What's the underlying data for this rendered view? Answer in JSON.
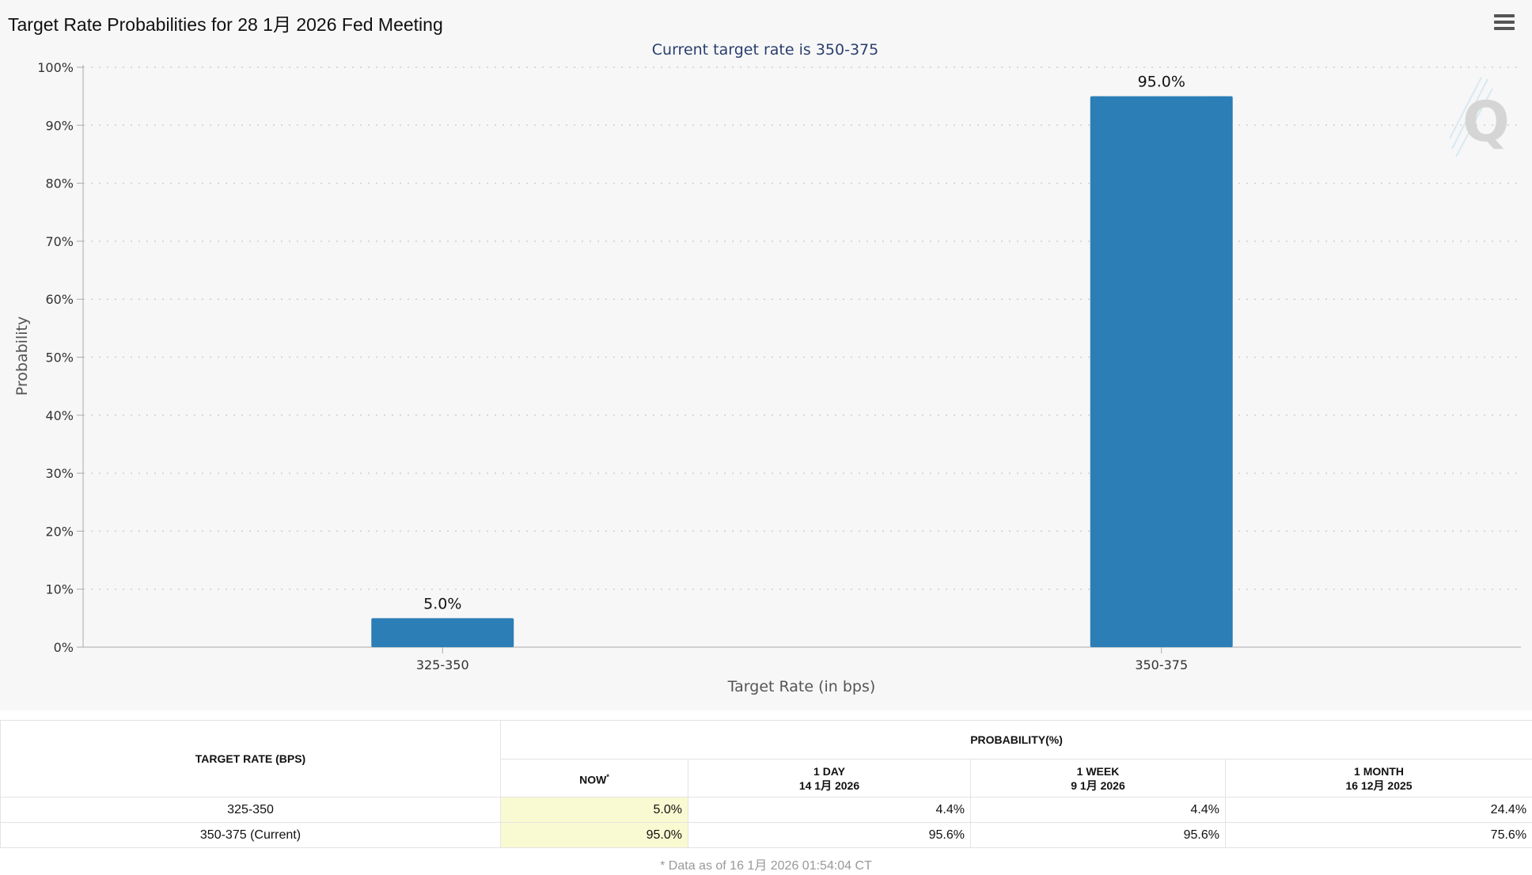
{
  "title": "Target Rate Probabilities for 28 1月 2026 Fed Meeting",
  "menu_icon": "hamburger-menu-icon",
  "watermark_icon": "cme-q-logo",
  "colors": {
    "bar": "#2b7eb6",
    "now_highlight": "#fafad2",
    "subtitle": "#2a3f6e"
  },
  "chart_data": {
    "type": "bar",
    "title": "Current target rate is 350-375",
    "categories": [
      "325-350",
      "350-375"
    ],
    "values": [
      5.0,
      95.0
    ],
    "data_labels": [
      "5.0%",
      "95.0%"
    ],
    "xlabel": "Target Rate (in bps)",
    "ylabel": "Probability",
    "ylim": [
      0,
      100
    ],
    "yticks": [
      "0%",
      "10%",
      "20%",
      "30%",
      "40%",
      "50%",
      "60%",
      "70%",
      "80%",
      "90%",
      "100%"
    ],
    "grid": true
  },
  "table": {
    "col_rate": "TARGET RATE (BPS)",
    "col_prob_group": "PROBABILITY(%)",
    "sub_headers": [
      {
        "line1": "NOW",
        "line2": "",
        "sup": "*"
      },
      {
        "line1": "1 DAY",
        "line2": "14 1月 2026",
        "sup": ""
      },
      {
        "line1": "1 WEEK",
        "line2": "9 1月 2026",
        "sup": ""
      },
      {
        "line1": "1 MONTH",
        "line2": "16 12月 2025",
        "sup": ""
      }
    ],
    "rows": [
      {
        "rate": "325-350",
        "values": [
          "5.0%",
          "4.4%",
          "4.4%",
          "24.4%"
        ]
      },
      {
        "rate": "350-375 (Current)",
        "values": [
          "95.0%",
          "95.6%",
          "95.6%",
          "75.6%"
        ]
      }
    ]
  },
  "footnote": "* Data as of 16 1月 2026 01:54:04 CT"
}
